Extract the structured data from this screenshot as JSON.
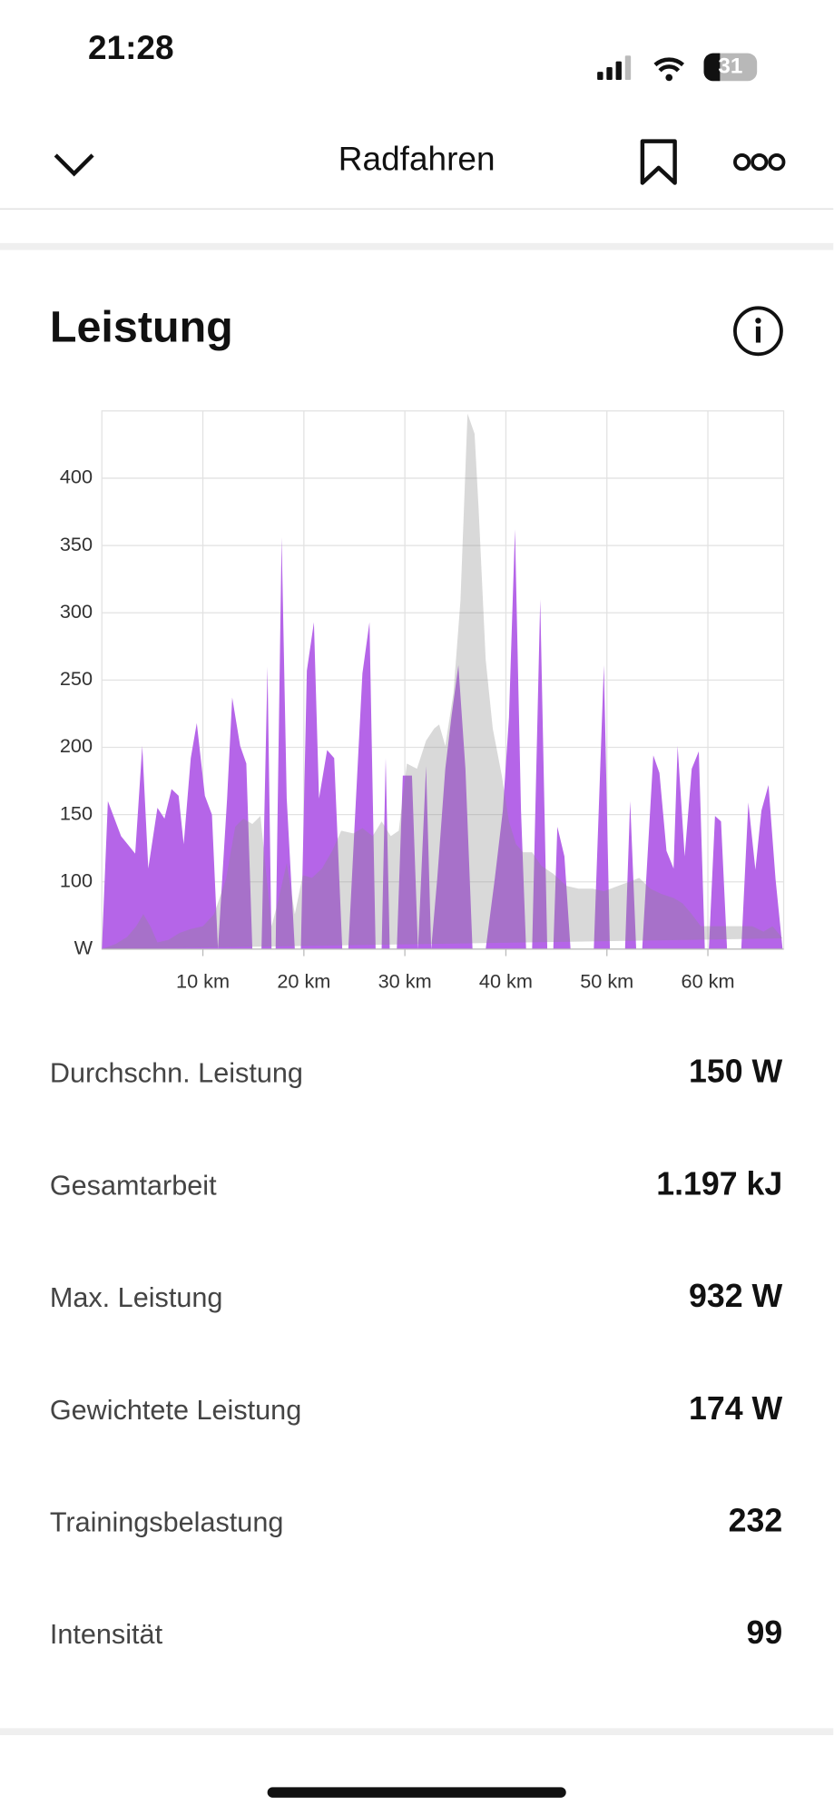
{
  "status_bar": {
    "time": "21:28",
    "battery": "31"
  },
  "header": {
    "title": "Radfahren"
  },
  "section": {
    "title": "Leistung"
  },
  "chart_data": {
    "type": "area",
    "xlim": [
      0,
      67.5
    ],
    "ylim": [
      50,
      450
    ],
    "xticks": [
      {
        "value": 10,
        "label": "10 km"
      },
      {
        "value": 20,
        "label": "20 km"
      },
      {
        "value": 30,
        "label": "30 km"
      },
      {
        "value": 40,
        "label": "40 km"
      },
      {
        "value": 50,
        "label": "50 km"
      },
      {
        "value": 60,
        "label": "60 km"
      }
    ],
    "yticks": [
      {
        "value": 50,
        "label": "W"
      },
      100,
      150,
      200,
      250,
      300,
      350,
      400
    ],
    "grid": true,
    "series": [
      {
        "color": "#b565e8",
        "x": [
          0,
          0.6,
          1.9,
          3.3,
          4.0,
          4.6,
          5.5,
          6.2,
          6.9,
          7.6,
          8.1,
          8.8,
          9.4,
          10.2,
          10.9,
          11.5,
          12.4,
          12.9,
          13.7,
          14.3,
          14.9,
          15.8,
          16.4,
          16.8,
          17.2,
          17.8,
          18.3,
          19.1,
          19.7,
          20.3,
          21.0,
          21.5,
          22.3,
          23.0,
          23.8,
          24.4,
          25.1,
          25.8,
          26.5,
          27.1,
          27.7,
          28.1,
          28.5,
          29.2,
          29.8,
          30.7,
          31.3,
          32.1,
          32.6,
          33.2,
          34.0,
          34.6,
          35.3,
          36.0,
          36.7,
          38.0,
          38.9,
          39.7,
          40.3,
          40.9,
          41.5,
          42.0,
          42.6,
          43.4,
          44.1,
          44.7,
          45.1,
          45.8,
          46.4,
          48.7,
          49.7,
          50.3,
          51.8,
          52.3,
          52.9,
          53.5,
          54.6,
          55.2,
          55.9,
          56.6,
          57.0,
          57.7,
          58.4,
          59.1,
          59.7,
          60.1,
          60.7,
          61.3,
          61.9,
          63.3,
          64.0,
          64.7,
          65.3,
          66.0,
          66.7,
          67.4
        ],
        "values": [
          50,
          160,
          134,
          121,
          201,
          110,
          155,
          147,
          169,
          164,
          128,
          192,
          218,
          164,
          150,
          50,
          162,
          237,
          201,
          188,
          50,
          50,
          260,
          50,
          50,
          356,
          162,
          50,
          50,
          257,
          293,
          162,
          198,
          192,
          50,
          50,
          153,
          255,
          293,
          50,
          50,
          192,
          50,
          50,
          179,
          179,
          50,
          186,
          50,
          102,
          184,
          222,
          261,
          184,
          50,
          50,
          102,
          153,
          222,
          362,
          153,
          50,
          50,
          310,
          50,
          50,
          141,
          119,
          50,
          50,
          261,
          50,
          50,
          160,
          50,
          50,
          194,
          181,
          123,
          110,
          201,
          119,
          184,
          197,
          50,
          50,
          149,
          145,
          50,
          50,
          159,
          109,
          153,
          172,
          102,
          50
        ]
      },
      {
        "color": "#8c8c8c",
        "x": [
          0,
          1.4,
          2.5,
          3.4,
          4.1,
          4.8,
          5.5,
          6.6,
          7.7,
          8.8,
          10.0,
          11.1,
          12.3,
          13.2,
          14.0,
          14.9,
          15.7,
          16.8,
          17.4,
          18.3,
          19.1,
          19.9,
          20.8,
          21.8,
          22.8,
          23.7,
          24.9,
          25.8,
          26.8,
          27.7,
          28.6,
          29.4,
          30.2,
          31.2,
          32.1,
          32.9,
          33.4,
          34.0,
          34.8,
          35.5,
          36.2,
          36.9,
          37.3,
          38.0,
          38.7,
          39.6,
          40.3,
          41.0,
          41.7,
          42.6,
          43.5,
          44.7,
          46.0,
          47.2,
          48.6,
          49.7,
          51.1,
          52.2,
          53.2,
          54.3,
          55.4,
          56.6,
          57.5,
          58.4,
          59.3,
          61.5,
          64.4,
          65.5,
          66.4,
          67.4
        ],
        "values": [
          50,
          54,
          59,
          67,
          76,
          67,
          55,
          57,
          62,
          65,
          67,
          76,
          102,
          141,
          147,
          143,
          149,
          67,
          84,
          114,
          76,
          105,
          103,
          110,
          123,
          138,
          136,
          140,
          134,
          145,
          134,
          138,
          188,
          184,
          205,
          214,
          217,
          201,
          240,
          309,
          448,
          433,
          377,
          265,
          214,
          179,
          145,
          128,
          122,
          122,
          112,
          106,
          97,
          95,
          95,
          93,
          97,
          100,
          103,
          95,
          91,
          88,
          84,
          76,
          67,
          67,
          67,
          63,
          67,
          58
        ]
      }
    ]
  },
  "stats": [
    {
      "label": "Durchschn. Leistung",
      "value": "150 W"
    },
    {
      "label": "Gesamtarbeit",
      "value": "1.197 kJ"
    },
    {
      "label": "Max. Leistung",
      "value": "932 W"
    },
    {
      "label": "Gewichtete Leistung",
      "value": "174 W"
    },
    {
      "label": "Trainingsbelastung",
      "value": "232"
    },
    {
      "label": "Intensität",
      "value": "99"
    }
  ]
}
